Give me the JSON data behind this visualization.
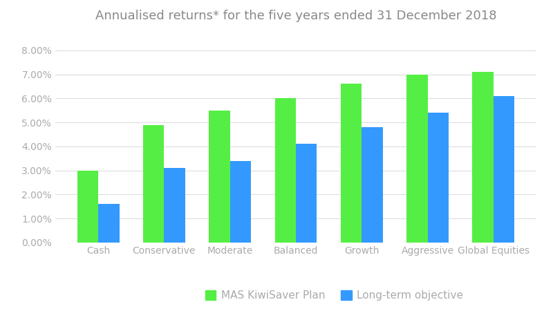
{
  "title": "Annualised returns* for the five years ended 31 December 2018",
  "categories": [
    "Cash",
    "Conservative",
    "Moderate",
    "Balanced",
    "Growth",
    "Aggressive",
    "Global Equities"
  ],
  "mas_values": [
    0.03,
    0.049,
    0.055,
    0.06,
    0.066,
    0.07,
    0.071
  ],
  "obj_values": [
    0.016,
    0.031,
    0.034,
    0.041,
    0.048,
    0.054,
    0.061
  ],
  "mas_color": "#55ee44",
  "obj_color": "#3399ff",
  "ylim": [
    0,
    0.088
  ],
  "yticks": [
    0.0,
    0.01,
    0.02,
    0.03,
    0.04,
    0.05,
    0.06,
    0.07,
    0.08
  ],
  "ytick_labels": [
    "0.00%",
    "1.00%",
    "2.00%",
    "3.00%",
    "4.00%",
    "5.00%",
    "6.00%",
    "7.00%",
    "8.00%"
  ],
  "legend_labels": [
    "MAS KiwiSaver Plan",
    "Long-term objective"
  ],
  "background_color": "#ffffff",
  "grid_color": "#dddddd",
  "text_color": "#aaaaaa",
  "bar_width": 0.32,
  "title_fontsize": 13,
  "tick_fontsize": 10,
  "legend_fontsize": 11,
  "title_color": "#888888"
}
